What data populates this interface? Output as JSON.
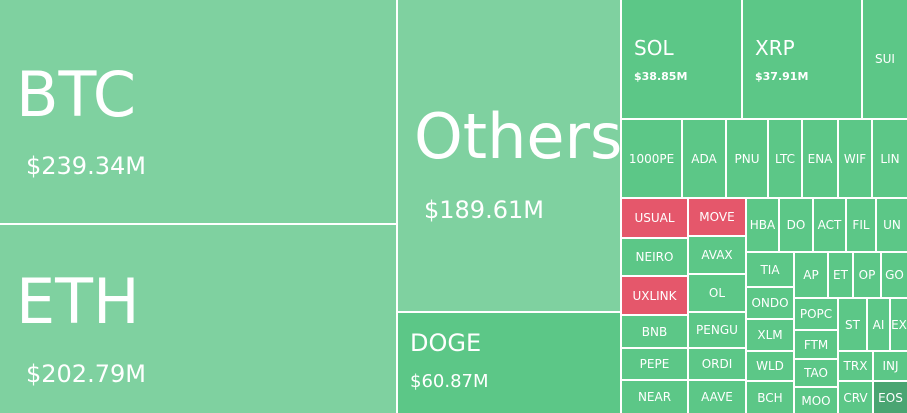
{
  "tiles": [
    {
      "label": "BTC",
      "value": "$239.34M"
    },
    {
      "label": "ETH",
      "value": "$202.79M"
    },
    {
      "label": "Others",
      "value": "$189.61M"
    },
    {
      "label": "DOGE",
      "value": "$60.87M"
    },
    {
      "label": "SOL",
      "value": "$38.85M"
    },
    {
      "label": "XRP",
      "value": "$37.91M"
    },
    {
      "label": "SUI"
    },
    {
      "label": "1000PE"
    },
    {
      "label": "ADA"
    },
    {
      "label": "PNU"
    },
    {
      "label": "LTC"
    },
    {
      "label": "ENA"
    },
    {
      "label": "WIF"
    },
    {
      "label": "LIN"
    },
    {
      "label": "USUAL"
    },
    {
      "label": "NEIRO"
    },
    {
      "label": "UXLINK"
    },
    {
      "label": "BNB"
    },
    {
      "label": "PEPE"
    },
    {
      "label": "NEAR"
    },
    {
      "label": "MOVE"
    },
    {
      "label": "AVAX"
    },
    {
      "label": "OL"
    },
    {
      "label": "PENGU"
    },
    {
      "label": "ORDI"
    },
    {
      "label": "AAVE"
    },
    {
      "label": "HBA"
    },
    {
      "label": "DO"
    },
    {
      "label": "ACT"
    },
    {
      "label": "FIL"
    },
    {
      "label": "UN"
    },
    {
      "label": "TIA"
    },
    {
      "label": "AP"
    },
    {
      "label": "ET"
    },
    {
      "label": "OP"
    },
    {
      "label": "GO"
    },
    {
      "label": "ONDO"
    },
    {
      "label": "XLM"
    },
    {
      "label": "WLD"
    },
    {
      "label": "BCH"
    },
    {
      "label": "POPC"
    },
    {
      "label": "FTM"
    },
    {
      "label": "TAO"
    },
    {
      "label": "MOO"
    },
    {
      "label": "ST"
    },
    {
      "label": "AI"
    },
    {
      "label": "EX"
    },
    {
      "label": "TRX"
    },
    {
      "label": "INJ"
    },
    {
      "label": "CRV"
    },
    {
      "label": "EOS"
    }
  ]
}
